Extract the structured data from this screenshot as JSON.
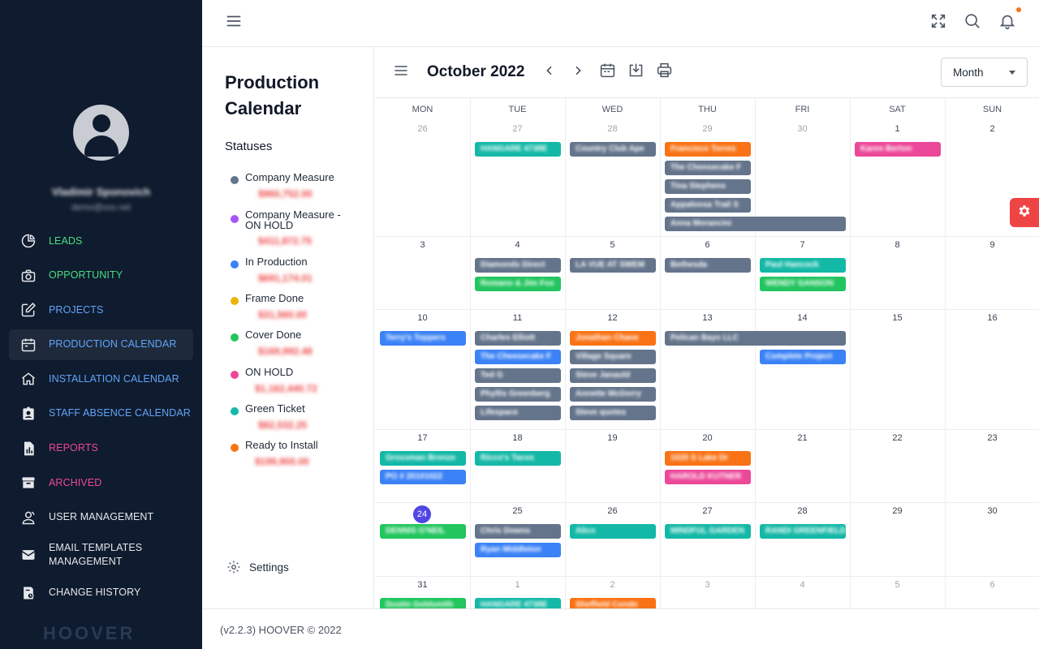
{
  "user": {
    "name": "Vladimir Sponovich",
    "email": "demo@sss.net"
  },
  "sidebar": {
    "items": [
      {
        "label": "LEADS",
        "color": "#4ade80"
      },
      {
        "label": "OPPORTUNITY",
        "color": "#4ade80"
      },
      {
        "label": "PROJECTS",
        "color": "#60a5fa"
      },
      {
        "label": "PRODUCTION CALENDAR",
        "color": "#60a5fa"
      },
      {
        "label": "INSTALLATION CALENDAR",
        "color": "#60a5fa"
      },
      {
        "label": "STAFF ABSENCE CALENDAR",
        "color": "#60a5fa"
      },
      {
        "label": "REPORTS",
        "color": "#ec4899"
      },
      {
        "label": "ARCHIVED",
        "color": "#ec4899"
      },
      {
        "label": "USER MANAGEMENT",
        "color": "#e5e7eb"
      },
      {
        "label": "EMAIL TEMPLATES MANAGEMENT",
        "color": "#e5e7eb"
      },
      {
        "label": "CHANGE HISTORY",
        "color": "#e5e7eb"
      }
    ],
    "logo": "HOOVER"
  },
  "page": {
    "title": "Production Calendar",
    "statuses_title": "Statuses",
    "settings_label": "Settings"
  },
  "statuses": [
    {
      "name": "Company Measure",
      "amount": "$960,752.00",
      "color": "#64748b"
    },
    {
      "name": "Company Measure - ON HOLD",
      "amount": "$411,872.75",
      "color": "#a855f7"
    },
    {
      "name": "In Production",
      "amount": "$691,174.01",
      "color": "#3b82f6"
    },
    {
      "name": "Frame Done",
      "amount": "$31,560.00",
      "color": "#eab308"
    },
    {
      "name": "Cover Done",
      "amount": "$169,992.48",
      "color": "#22c55e"
    },
    {
      "name": "ON HOLD",
      "amount": "$1,162,440.72",
      "color": "#ec4899"
    },
    {
      "name": "Green Ticket",
      "amount": "$82,532.25",
      "color": "#14b8a6"
    },
    {
      "name": "Ready to Install",
      "amount": "$199,900.00",
      "color": "#f97316"
    }
  ],
  "calendar": {
    "month_label": "October 2022",
    "view": "Month",
    "weekdays": [
      "MON",
      "TUE",
      "WED",
      "THU",
      "FRI",
      "SAT",
      "SUN"
    ],
    "weeks": [
      [
        {
          "d": "26",
          "m": true
        },
        {
          "d": "27",
          "m": true
        },
        {
          "d": "28",
          "m": true
        },
        {
          "d": "29",
          "m": true
        },
        {
          "d": "30",
          "m": true
        },
        {
          "d": "1"
        },
        {
          "d": "2"
        }
      ],
      [
        {
          "d": "3"
        },
        {
          "d": "4"
        },
        {
          "d": "5"
        },
        {
          "d": "6"
        },
        {
          "d": "7"
        },
        {
          "d": "8"
        },
        {
          "d": "9"
        }
      ],
      [
        {
          "d": "10"
        },
        {
          "d": "11"
        },
        {
          "d": "12"
        },
        {
          "d": "13"
        },
        {
          "d": "14"
        },
        {
          "d": "15"
        },
        {
          "d": "16"
        }
      ],
      [
        {
          "d": "17"
        },
        {
          "d": "18"
        },
        {
          "d": "19"
        },
        {
          "d": "20"
        },
        {
          "d": "21"
        },
        {
          "d": "22"
        },
        {
          "d": "23"
        }
      ],
      [
        {
          "d": "24",
          "today": true
        },
        {
          "d": "25"
        },
        {
          "d": "26"
        },
        {
          "d": "27"
        },
        {
          "d": "28"
        },
        {
          "d": "29"
        },
        {
          "d": "30"
        }
      ],
      [
        {
          "d": "31"
        },
        {
          "d": "1",
          "m": true
        },
        {
          "d": "2",
          "m": true
        },
        {
          "d": "3",
          "m": true
        },
        {
          "d": "4",
          "m": true
        },
        {
          "d": "5",
          "m": true
        },
        {
          "d": "6",
          "m": true
        }
      ]
    ],
    "events": [
      {
        "w": 0,
        "c": 1,
        "span": 1,
        "slot": 0,
        "label": "HANGARE 4738E",
        "color": "#14b8a6"
      },
      {
        "w": 0,
        "c": 2,
        "span": 1,
        "slot": 0,
        "label": "Country Club Ape",
        "color": "#64748b"
      },
      {
        "w": 0,
        "c": 3,
        "span": 1,
        "slot": 0,
        "label": "Francisco Torres",
        "color": "#f97316"
      },
      {
        "w": 0,
        "c": 3,
        "span": 1,
        "slot": 1,
        "label": "The Cheesecake F",
        "color": "#64748b"
      },
      {
        "w": 0,
        "c": 3,
        "span": 1,
        "slot": 2,
        "label": "Tina Stephens",
        "color": "#64748b"
      },
      {
        "w": 0,
        "c": 3,
        "span": 1,
        "slot": 3,
        "label": "Appaloosa Trail S",
        "color": "#64748b"
      },
      {
        "w": 0,
        "c": 3,
        "span": 2,
        "slot": 4,
        "label": "Anna Morancini",
        "color": "#64748b"
      },
      {
        "w": 0,
        "c": 5,
        "span": 1,
        "slot": 0,
        "label": "Karen Berton",
        "color": "#ec4899"
      },
      {
        "w": 1,
        "c": 1,
        "span": 1,
        "slot": 0,
        "label": "Diamonds Direct",
        "color": "#64748b"
      },
      {
        "w": 1,
        "c": 1,
        "span": 1,
        "slot": 1,
        "label": "Romano & Jim Fox",
        "color": "#22c55e"
      },
      {
        "w": 1,
        "c": 2,
        "span": 1,
        "slot": 0,
        "label": "LA VUE AT SWEM",
        "color": "#64748b"
      },
      {
        "w": 1,
        "c": 3,
        "span": 1,
        "slot": 0,
        "label": "Bethesda",
        "color": "#64748b"
      },
      {
        "w": 1,
        "c": 4,
        "span": 1,
        "slot": 0,
        "label": "Paul Hancock",
        "color": "#14b8a6"
      },
      {
        "w": 1,
        "c": 4,
        "span": 1,
        "slot": 1,
        "label": "WENDY GANSON",
        "color": "#22c55e"
      },
      {
        "w": 2,
        "c": 0,
        "span": 1,
        "slot": 0,
        "label": "Terry's Toppers",
        "color": "#3b82f6"
      },
      {
        "w": 2,
        "c": 1,
        "span": 1,
        "slot": 0,
        "label": "Charles Elliott",
        "color": "#64748b"
      },
      {
        "w": 2,
        "c": 1,
        "span": 1,
        "slot": 1,
        "label": "The Cheesecake F",
        "color": "#3b82f6"
      },
      {
        "w": 2,
        "c": 1,
        "span": 1,
        "slot": 2,
        "label": "Ted G",
        "color": "#64748b"
      },
      {
        "w": 2,
        "c": 1,
        "span": 1,
        "slot": 3,
        "label": "Phyllis Greenberg",
        "color": "#64748b"
      },
      {
        "w": 2,
        "c": 1,
        "span": 1,
        "slot": 4,
        "label": "Lifespace",
        "color": "#64748b"
      },
      {
        "w": 2,
        "c": 2,
        "span": 1,
        "slot": 0,
        "label": "Jonathan Chane",
        "color": "#f97316"
      },
      {
        "w": 2,
        "c": 2,
        "span": 1,
        "slot": 1,
        "label": "Village Square",
        "color": "#64748b"
      },
      {
        "w": 2,
        "c": 2,
        "span": 1,
        "slot": 2,
        "label": "Steve Janauld",
        "color": "#64748b"
      },
      {
        "w": 2,
        "c": 2,
        "span": 1,
        "slot": 3,
        "label": "Annette McGorry",
        "color": "#64748b"
      },
      {
        "w": 2,
        "c": 2,
        "span": 1,
        "slot": 4,
        "label": "Steve quotes",
        "color": "#64748b"
      },
      {
        "w": 2,
        "c": 3,
        "span": 2,
        "slot": 0,
        "label": "Pelican Bays LLC",
        "color": "#64748b"
      },
      {
        "w": 2,
        "c": 4,
        "span": 1,
        "slot": 1,
        "label": "Complete Project",
        "color": "#3b82f6"
      },
      {
        "w": 3,
        "c": 0,
        "span": 1,
        "slot": 0,
        "label": "Grossman Bronze",
        "color": "#14b8a6"
      },
      {
        "w": 3,
        "c": 0,
        "span": 1,
        "slot": 1,
        "label": "PO # 20101022",
        "color": "#3b82f6"
      },
      {
        "w": 3,
        "c": 1,
        "span": 1,
        "slot": 0,
        "label": "Ricco's Tacos",
        "color": "#14b8a6"
      },
      {
        "w": 3,
        "c": 3,
        "span": 1,
        "slot": 0,
        "label": "1020 S Lake Dr",
        "color": "#f97316"
      },
      {
        "w": 3,
        "c": 3,
        "span": 1,
        "slot": 1,
        "label": "HAROLD KUTNER",
        "color": "#ec4899"
      },
      {
        "w": 4,
        "c": 0,
        "span": 1,
        "slot": 0,
        "label": "DENNIS O'NEIL",
        "color": "#22c55e"
      },
      {
        "w": 4,
        "c": 1,
        "span": 1,
        "slot": 0,
        "label": "Chris Downs",
        "color": "#64748b"
      },
      {
        "w": 4,
        "c": 1,
        "span": 1,
        "slot": 1,
        "label": "Ryan Middleton",
        "color": "#3b82f6"
      },
      {
        "w": 4,
        "c": 2,
        "span": 1,
        "slot": 0,
        "label": "Alico",
        "color": "#14b8a6"
      },
      {
        "w": 4,
        "c": 3,
        "span": 1,
        "slot": 0,
        "label": "MINDFUL GARDEN",
        "color": "#14b8a6"
      },
      {
        "w": 4,
        "c": 4,
        "span": 1,
        "slot": 0,
        "label": "RANDI GREENFIELD",
        "color": "#14b8a6"
      },
      {
        "w": 5,
        "c": 0,
        "span": 1,
        "slot": 0,
        "label": "Dustin Goldsmith",
        "color": "#22c55e"
      },
      {
        "w": 5,
        "c": 1,
        "span": 1,
        "slot": 0,
        "label": "HANGARE 4738E",
        "color": "#14b8a6"
      },
      {
        "w": 5,
        "c": 2,
        "span": 1,
        "slot": 0,
        "label": "Sheffield Condo",
        "color": "#f97316"
      }
    ]
  },
  "footer": {
    "text": "(v2.2.3) HOOVER © 2022"
  }
}
